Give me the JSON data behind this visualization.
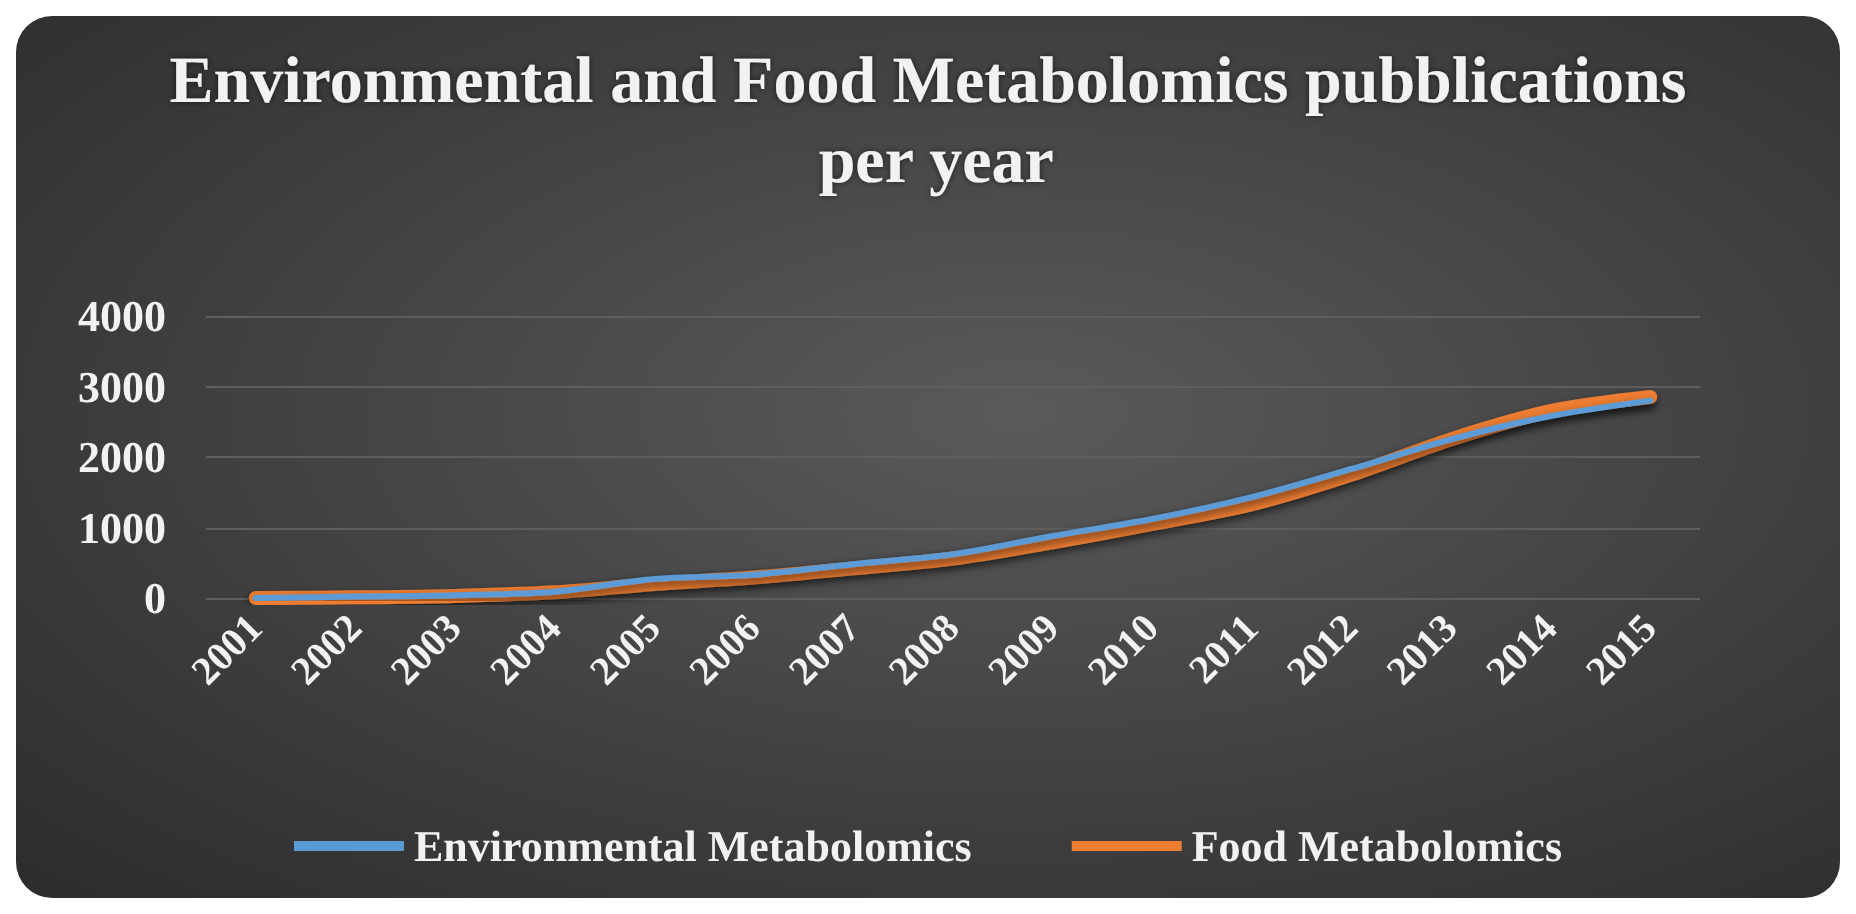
{
  "chart_data": {
    "type": "line",
    "title": "Environmental and Food Metabolomics pubblications per year",
    "categories": [
      "2001",
      "2002",
      "2003",
      "2004",
      "2005",
      "2006",
      "2007",
      "2008",
      "2009",
      "2010",
      "2011",
      "2012",
      "2013",
      "2014",
      "2015"
    ],
    "series": [
      {
        "name": "Environmental Metabolomics",
        "color": "#5b9bd5",
        "values": [
          0,
          20,
          40,
          90,
          270,
          330,
          480,
          620,
          880,
          1120,
          1430,
          1830,
          2250,
          2580,
          2800
        ]
      },
      {
        "name": "Food Metabolomics",
        "color": "#ed7d31",
        "values": [
          0,
          10,
          30,
          80,
          200,
          290,
          420,
          560,
          790,
          1050,
          1330,
          1750,
          2250,
          2650,
          2850
        ]
      }
    ],
    "ylim": [
      0,
      4000
    ],
    "yticks": [
      0,
      1000,
      2000,
      3000,
      4000
    ],
    "grid": "y",
    "legend": "bottom",
    "marker": "none",
    "line_style": "solid"
  }
}
